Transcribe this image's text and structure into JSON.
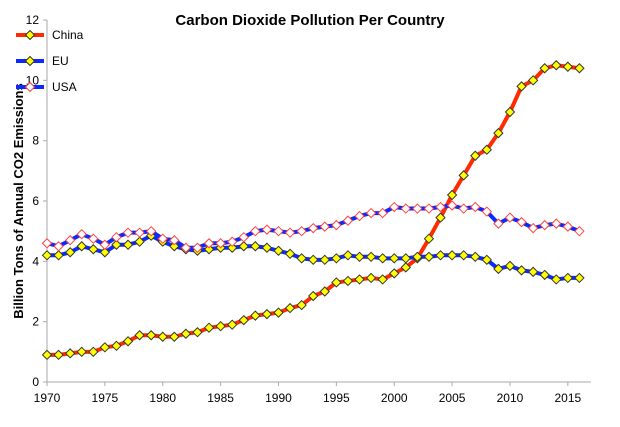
{
  "chart_data": {
    "type": "line",
    "title": "Carbon Dioxide Pollution Per Country",
    "xlabel": "",
    "ylabel": "Billion Tons of Annual CO2 Emissions",
    "xlim": [
      1970,
      2017
    ],
    "ylim": [
      0,
      12
    ],
    "xticks": [
      1970,
      1975,
      1980,
      1985,
      1990,
      1995,
      2000,
      2005,
      2010,
      2015
    ],
    "yticks": [
      0,
      2,
      4,
      6,
      8,
      10,
      12
    ],
    "grid": false,
    "legend_position": "top-left",
    "x": [
      1970,
      1971,
      1972,
      1973,
      1974,
      1975,
      1976,
      1977,
      1978,
      1979,
      1980,
      1981,
      1982,
      1983,
      1984,
      1985,
      1986,
      1987,
      1988,
      1989,
      1990,
      1991,
      1992,
      1993,
      1994,
      1995,
      1996,
      1997,
      1998,
      1999,
      2000,
      2001,
      2002,
      2003,
      2004,
      2005,
      2006,
      2007,
      2008,
      2009,
      2010,
      2011,
      2012,
      2013,
      2014,
      2015,
      2016
    ],
    "series": [
      {
        "name": "China",
        "color": "#ff2a00",
        "marker_fill": "#ffff00",
        "marker_stroke": "#333333",
        "values": [
          0.9,
          0.9,
          0.95,
          1.0,
          1.0,
          1.15,
          1.2,
          1.35,
          1.55,
          1.55,
          1.5,
          1.5,
          1.6,
          1.65,
          1.8,
          1.85,
          1.9,
          2.05,
          2.2,
          2.25,
          2.3,
          2.45,
          2.55,
          2.85,
          3.0,
          3.3,
          3.35,
          3.4,
          3.45,
          3.4,
          3.6,
          3.8,
          4.1,
          4.75,
          5.45,
          6.2,
          6.85,
          7.5,
          7.7,
          8.25,
          8.95,
          9.8,
          10.0,
          10.4,
          10.5,
          10.45,
          10.4
        ]
      },
      {
        "name": "EU",
        "color": "#0a2aff",
        "marker_fill": "#ffff00",
        "marker_stroke": "#333333",
        "values": [
          4.2,
          4.2,
          4.3,
          4.5,
          4.4,
          4.3,
          4.55,
          4.55,
          4.65,
          4.85,
          4.65,
          4.5,
          4.4,
          4.35,
          4.4,
          4.45,
          4.45,
          4.5,
          4.5,
          4.45,
          4.35,
          4.25,
          4.1,
          4.05,
          4.05,
          4.1,
          4.2,
          4.15,
          4.15,
          4.1,
          4.1,
          4.1,
          4.15,
          4.15,
          4.2,
          4.2,
          4.2,
          4.15,
          4.05,
          3.75,
          3.85,
          3.7,
          3.65,
          3.55,
          3.4,
          3.45,
          3.45
        ]
      },
      {
        "name": "USA",
        "color": "#0a2aff",
        "marker_fill": "#ffffff",
        "marker_stroke": "#ff4040",
        "values": [
          4.6,
          4.5,
          4.7,
          4.9,
          4.75,
          4.55,
          4.8,
          4.95,
          4.95,
          5.0,
          4.75,
          4.7,
          4.45,
          4.45,
          4.6,
          4.6,
          4.65,
          4.8,
          5.0,
          5.05,
          5.0,
          4.95,
          5.0,
          5.1,
          5.15,
          5.2,
          5.35,
          5.5,
          5.6,
          5.6,
          5.8,
          5.75,
          5.75,
          5.75,
          5.8,
          5.85,
          5.75,
          5.8,
          5.65,
          5.25,
          5.45,
          5.3,
          5.1,
          5.2,
          5.25,
          5.15,
          5.0
        ]
      }
    ]
  }
}
